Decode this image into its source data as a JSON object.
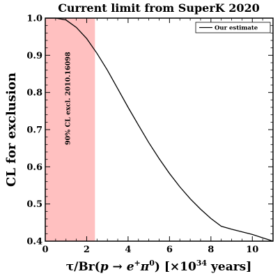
{
  "chart_data": {
    "type": "line",
    "title": "Current limit from SuperK 2020",
    "ylabel": "CL for exclusion",
    "xlabel_parts": {
      "lead": "τ/Br(",
      "particle": "p",
      "arrow": " → ",
      "product": "e",
      "product_sup": "+",
      "pion": "π",
      "pion_sup": "0",
      "close": ") [×10",
      "exp": "34",
      "unit": " years]"
    },
    "xlim": [
      0,
      11
    ],
    "ylim": [
      0.4,
      1.0
    ],
    "x_ticks": [
      0,
      2,
      4,
      6,
      8,
      10
    ],
    "y_ticks": [
      0.4,
      0.5,
      0.6,
      0.7,
      0.8,
      0.9,
      1.0
    ],
    "x_tick_labels": [
      "0",
      "2",
      "4",
      "6",
      "8",
      "10"
    ],
    "y_tick_labels": [
      "0.4",
      "0.5",
      "0.6",
      "0.7",
      "0.8",
      "0.9",
      "1.0"
    ],
    "grid": false,
    "legend_position": "top-right",
    "shaded_region": {
      "x_range": [
        0,
        2.4
      ],
      "label": "90% CL excl. 2010.16098",
      "color": "#ffc0c0"
    },
    "series": [
      {
        "name": "Our estimate",
        "color": "#000000",
        "x": [
          0,
          0.5,
          1.0,
          1.5,
          2.0,
          2.5,
          3.0,
          3.5,
          4.0,
          4.5,
          5.0,
          5.5,
          6.0,
          6.5,
          7.0,
          7.5,
          8.0,
          8.5,
          9.0,
          9.5,
          10.0,
          10.5,
          11.0
        ],
        "y": [
          1.0,
          1.0,
          0.995,
          0.975,
          0.945,
          0.905,
          0.86,
          0.81,
          0.76,
          0.712,
          0.665,
          0.622,
          0.582,
          0.546,
          0.514,
          0.486,
          0.461,
          0.44,
          0.432,
          0.425,
          0.418,
          0.409,
          0.4
        ]
      }
    ]
  }
}
